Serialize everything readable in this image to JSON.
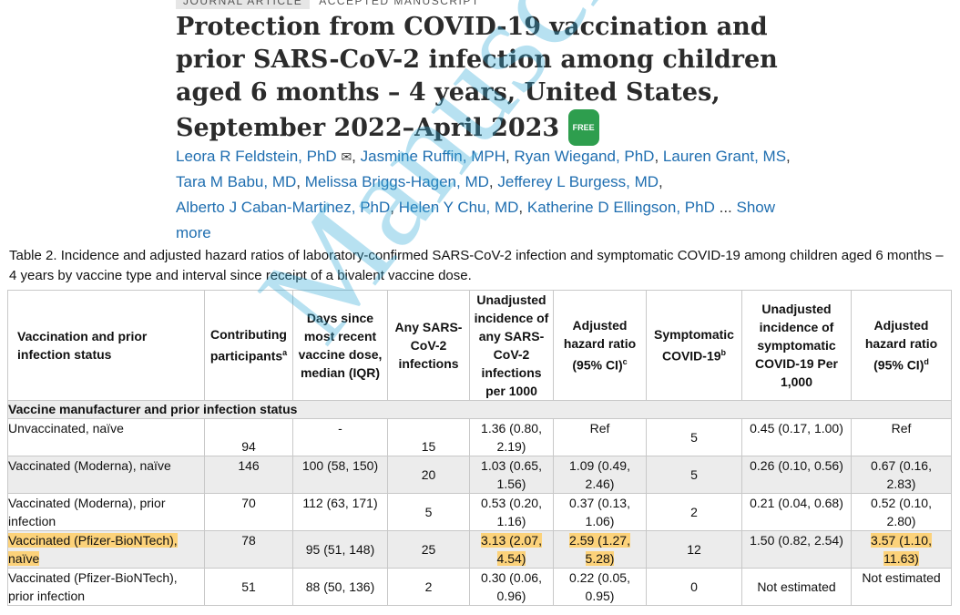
{
  "header": {
    "article_type": "JOURNAL ARTICLE",
    "status": "ACCEPTED MANUSCRIPT",
    "title": "Protection from COVID-19 vaccination and prior SARS-CoV-2 infection among children aged 6 months – 4 years, United States, September 2022–April 2023",
    "free_badge": "FREE"
  },
  "authors": {
    "list": [
      "Leora R Feldstein, PhD",
      "Jasmine Ruffin, MPH",
      "Ryan Wiegand, PhD",
      "Lauren Grant, MS",
      "Tara M Babu, MD",
      "Melissa Briggs-Hagen, MD",
      "Jefferey L Burgess, MD",
      "Alberto J Caban-Martinez, PhD",
      "Helen Y Chu, MD",
      "Katherine D Ellingson, PhD"
    ],
    "ellipsis": "...",
    "show_more": "Show more"
  },
  "table": {
    "caption": "Table 2. Incidence and adjusted hazard ratios of laboratory-confirmed SARS-CoV-2 infection and symptomatic COVID-19 among children aged 6 months – 4 years by vaccine type and interval since receipt of a bivalent vaccine dose.",
    "headers": {
      "status": "Vaccination and prior infection status",
      "participants": "Contributing participants",
      "participants_sup": "a",
      "days": "Days since most recent vaccine dose, median (IQR)",
      "infections": "Any SARS-CoV-2 infections",
      "unadj_any": "Unadjusted incidence of any SARS-CoV-2 infections per 1000",
      "adj_any": "Adjusted hazard ratio (95% CI)",
      "adj_any_sup": "c",
      "symptomatic": "Symptomatic COVID-19",
      "symptomatic_sup": "b",
      "unadj_sympt": "Unadjusted incidence of symptomatic COVID-19 Per 1,000",
      "adj_sympt": "Adjusted hazard ratio (95% CI)",
      "adj_sympt_sup": "d"
    },
    "section": "Vaccine manufacturer and prior infection status",
    "rows": [
      {
        "status": "Unvaccinated, naïve",
        "participants": "94",
        "days": "-",
        "infections": "15",
        "unadj_any": "1.36 (0.80, 2.19)",
        "adj_any": "Ref",
        "symptomatic": "5",
        "unadj_sympt": "0.45 (0.17, 1.00)",
        "adj_sympt": "Ref"
      },
      {
        "status": "Vaccinated (Moderna), naïve",
        "participants": "146",
        "days": "100 (58, 150)",
        "infections": "20",
        "unadj_any": "1.03 (0.65, 1.56)",
        "adj_any": "1.09 (0.49, 2.46)",
        "symptomatic": "5",
        "unadj_sympt": "0.26 (0.10, 0.56)",
        "adj_sympt": "0.67 (0.16, 2.83)"
      },
      {
        "status": "Vaccinated (Moderna), prior infection",
        "participants": "70",
        "days": "112 (63, 171)",
        "infections": "5",
        "unadj_any": "0.53 (0.20, 1.16)",
        "adj_any": "0.37 (0.13, 1.06)",
        "symptomatic": "2",
        "unadj_sympt": "0.21 (0.04, 0.68)",
        "adj_sympt": "0.52 (0.10, 2.80)"
      },
      {
        "status": "Vaccinated (Pfizer-BioNTech), naïve",
        "participants": "78",
        "days": "95 (51, 148)",
        "infections": "25",
        "unadj_any": "3.13 (2.07, 4.54)",
        "adj_any": "2.59 (1.27, 5.28)",
        "symptomatic": "12",
        "unadj_sympt": "1.50 (0.82, 2.54)",
        "adj_sympt": "3.57 (1.10, 11.63)"
      },
      {
        "status": "Vaccinated (Pfizer-BioNTech), prior infection",
        "participants": "51",
        "days": "88 (50, 136)",
        "infections": "2",
        "unadj_any": "0.30 (0.06, 0.96)",
        "adj_any": "0.22 (0.05, 0.95)",
        "symptomatic": "0",
        "unadj_sympt": "Not estimated",
        "adj_sympt": "Not estimated"
      }
    ]
  },
  "watermark": "Manuscript",
  "colors": {
    "link": "#1f6eb0",
    "highlight": "#fcd27a",
    "free_badge": "#2e9e4e",
    "watermark": "#33aad8"
  }
}
